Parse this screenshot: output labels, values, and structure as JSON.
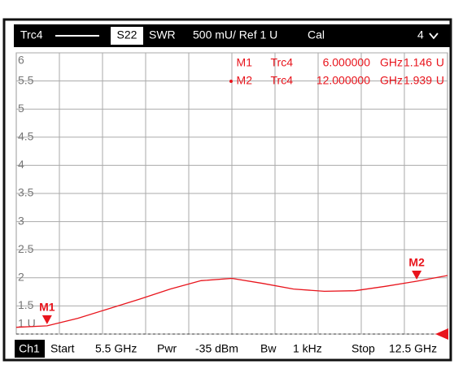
{
  "header": {
    "trace": "Trc4",
    "parameter": "S22",
    "format": "SWR",
    "scale": "500 mU/ Ref 1 U",
    "cal": "Cal",
    "channel_count": "4"
  },
  "footer": {
    "channel": "Ch1",
    "start_label": "Start",
    "start": "5.5 GHz",
    "power_label": "Pwr",
    "power": "-35 dBm",
    "bw_label": "Bw",
    "bw": "1 kHz",
    "stop_label": "Stop",
    "stop": "12.5 GHz"
  },
  "chart_data": {
    "type": "line",
    "color": "#e8141c",
    "grid": true,
    "x": [
      5.5,
      6,
      6.5,
      7,
      7.5,
      8,
      8.5,
      9,
      9.5,
      10,
      10.5,
      11,
      11.5,
      12,
      12.5
    ],
    "series": [
      {
        "name": "Trc4",
        "color": "#e8141c",
        "values": [
          1.12,
          1.146,
          1.28,
          1.45,
          1.62,
          1.8,
          1.95,
          1.99,
          1.9,
          1.8,
          1.76,
          1.77,
          1.85,
          1.939,
          2.04
        ]
      }
    ],
    "xlim": [
      5.5,
      12.5
    ],
    "xticks": [
      6.2,
      6.9,
      7.6,
      8.3,
      9.0,
      9.7,
      10.4,
      11.1,
      11.8
    ],
    "ylim": [
      1,
      6
    ],
    "yticks": [
      {
        "value": 1,
        "label": "1 U"
      },
      1.5,
      2,
      2.5,
      3,
      3.5,
      4,
      4.5,
      5,
      5.5,
      6
    ],
    "markers": [
      {
        "name": "M1",
        "trace": "Trc4",
        "x": 6,
        "x_label": "6.000000",
        "x_unit": "GHz",
        "value": 1.146,
        "value_label": "1.146",
        "unit": "U"
      },
      {
        "name": "M2",
        "trace": "Trc4",
        "x": 12,
        "x_label": "12.000000",
        "x_unit": "GHz",
        "value": 1.939,
        "value_label": "1.939",
        "unit": "U"
      }
    ]
  }
}
